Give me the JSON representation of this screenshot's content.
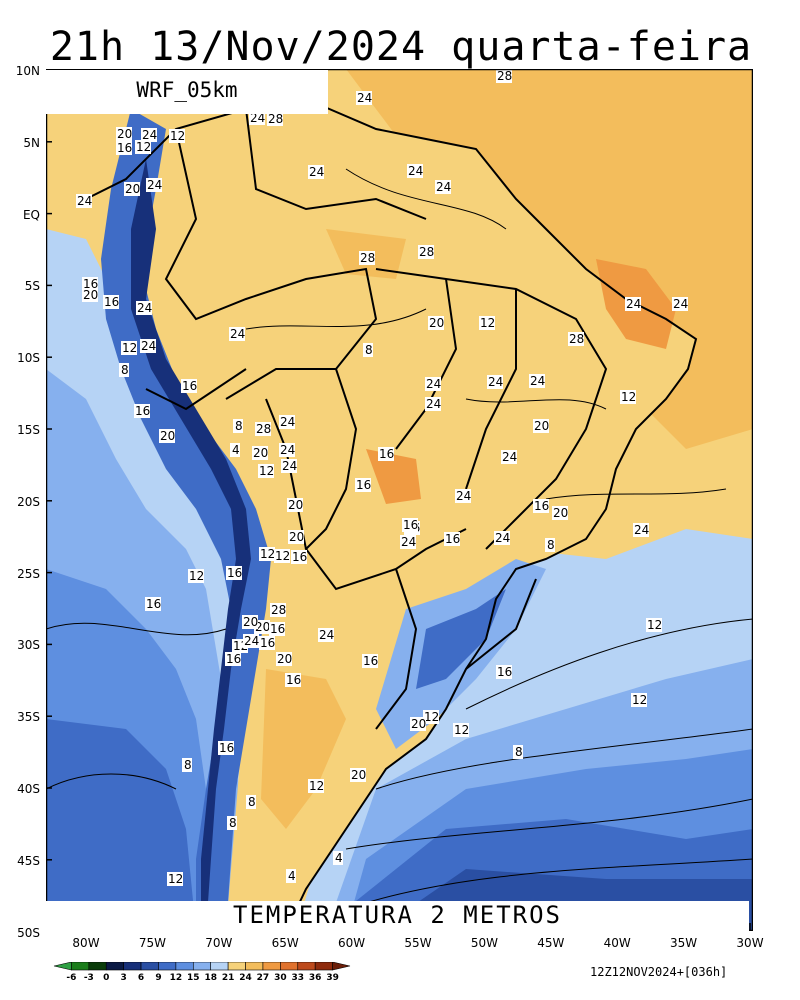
{
  "title": "21h 13/Nov/2024 quarta-feira",
  "model": "WRF_05km",
  "field": "TEMPERATURA 2 METROS",
  "run_info": "12Z12NOV2024+[036h]",
  "lat_ticks": [
    "10N",
    "5N",
    "EQ",
    "5S",
    "10S",
    "15S",
    "20S",
    "25S",
    "30S",
    "35S",
    "40S",
    "45S",
    "50S"
  ],
  "lon_ticks": [
    "80W",
    "75W",
    "70W",
    "65W",
    "60W",
    "55W",
    "50W",
    "45W",
    "40W",
    "35W",
    "30W"
  ],
  "colorbar": {
    "labels": [
      "-6",
      "-3",
      "0",
      "3",
      "6",
      "9",
      "12",
      "15",
      "18",
      "21",
      "24",
      "27",
      "30",
      "33",
      "36",
      "39"
    ],
    "colors": [
      "#2ea043",
      "#1a7d1a",
      "#0a3d0a",
      "#0b1a45",
      "#17307a",
      "#2a4fa3",
      "#3f6cc6",
      "#5e8fe0",
      "#86b0ee",
      "#b6d3f5",
      "#f6d27a",
      "#f3bd5c",
      "#ef9a42",
      "#e0722e",
      "#bd4a1c",
      "#8f2b0c",
      "#6b1e08"
    ]
  },
  "contour_labels": [
    "28",
    "24",
    "24",
    "28",
    "20",
    "24",
    "12",
    "16",
    "12",
    "24",
    "24",
    "24",
    "20",
    "24",
    "24",
    "28",
    "28",
    "16",
    "20",
    "16",
    "24",
    "24",
    "28",
    "24",
    "12",
    "20",
    "24",
    "8",
    "24",
    "24",
    "24",
    "12",
    "24",
    "16",
    "8",
    "24",
    "12",
    "16",
    "20",
    "24",
    "28",
    "8",
    "4",
    "24",
    "24",
    "12",
    "20",
    "16",
    "16",
    "20",
    "24",
    "24",
    "16",
    "20",
    "16",
    "8",
    "16",
    "16",
    "12",
    "12",
    "20",
    "16",
    "24",
    "12",
    "16",
    "28",
    "24",
    "20",
    "24",
    "16",
    "20",
    "16",
    "12",
    "24",
    "16",
    "20",
    "20",
    "16",
    "16",
    "24",
    "16",
    "12",
    "16",
    "20",
    "12",
    "12",
    "12",
    "8",
    "16",
    "8",
    "20",
    "12",
    "8",
    "8",
    "4",
    "4",
    "12"
  ]
}
